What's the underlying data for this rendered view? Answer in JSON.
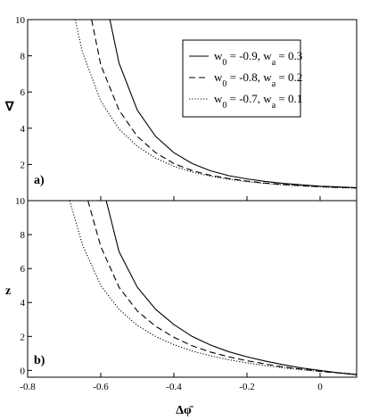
{
  "chart_data": [
    {
      "panel": "a)",
      "type": "line",
      "ylabel": "∇",
      "xlim": [
        -0.8,
        0.1
      ],
      "ylim": [
        0,
        10
      ],
      "yticks": [
        2,
        4,
        6,
        8,
        10
      ],
      "series": [
        {
          "style": "solid",
          "x": [
            -0.575,
            -0.55,
            -0.5,
            -0.45,
            -0.4,
            -0.35,
            -0.3,
            -0.25,
            -0.2,
            -0.15,
            -0.1,
            -0.05,
            0.0,
            0.05,
            0.1
          ],
          "y": [
            10.0,
            7.6,
            5.0,
            3.55,
            2.65,
            2.05,
            1.65,
            1.38,
            1.2,
            1.06,
            0.95,
            0.87,
            0.8,
            0.76,
            0.72
          ]
        },
        {
          "style": "dashed",
          "x": [
            -0.625,
            -0.6,
            -0.55,
            -0.5,
            -0.45,
            -0.4,
            -0.35,
            -0.3,
            -0.25,
            -0.2,
            -0.15,
            -0.1,
            -0.05,
            0.0,
            0.05,
            0.1
          ],
          "y": [
            10.0,
            7.5,
            5.0,
            3.55,
            2.65,
            2.05,
            1.66,
            1.4,
            1.22,
            1.08,
            0.97,
            0.89,
            0.82,
            0.77,
            0.73,
            0.7
          ]
        },
        {
          "style": "dotted",
          "x": [
            -0.67,
            -0.65,
            -0.6,
            -0.55,
            -0.5,
            -0.45,
            -0.4,
            -0.35,
            -0.3,
            -0.25,
            -0.2,
            -0.15,
            -0.1,
            -0.05,
            0.0,
            0.05,
            0.1
          ],
          "y": [
            10.0,
            8.2,
            5.5,
            3.95,
            3.0,
            2.35,
            1.9,
            1.58,
            1.35,
            1.18,
            1.05,
            0.95,
            0.87,
            0.81,
            0.76,
            0.72,
            0.69
          ]
        }
      ]
    },
    {
      "panel": "b)",
      "type": "line",
      "ylabel": "z",
      "xlabel": "Δφ̄",
      "xlim": [
        -0.8,
        0.1
      ],
      "ylim": [
        -0.4,
        10
      ],
      "xticks": [
        -0.8,
        -0.6,
        -0.4,
        -0.2,
        0
      ],
      "yticks": [
        0,
        2,
        4,
        6,
        8,
        10
      ],
      "series": [
        {
          "style": "solid",
          "x": [
            -0.585,
            -0.55,
            -0.5,
            -0.45,
            -0.4,
            -0.35,
            -0.3,
            -0.25,
            -0.2,
            -0.15,
            -0.1,
            -0.05,
            0.0,
            0.05,
            0.1
          ],
          "y": [
            10.0,
            7.0,
            4.9,
            3.6,
            2.7,
            2.0,
            1.5,
            1.1,
            0.8,
            0.55,
            0.33,
            0.14,
            0.0,
            -0.14,
            -0.26
          ]
        },
        {
          "style": "dashed",
          "x": [
            -0.635,
            -0.6,
            -0.55,
            -0.5,
            -0.45,
            -0.4,
            -0.35,
            -0.3,
            -0.25,
            -0.2,
            -0.15,
            -0.1,
            -0.05,
            0.0,
            0.05,
            0.1
          ],
          "y": [
            10.0,
            7.3,
            4.9,
            3.5,
            2.6,
            1.95,
            1.45,
            1.08,
            0.8,
            0.57,
            0.38,
            0.2,
            0.07,
            -0.05,
            -0.15,
            -0.24
          ]
        },
        {
          "style": "dotted",
          "x": [
            -0.685,
            -0.65,
            -0.6,
            -0.55,
            -0.5,
            -0.45,
            -0.4,
            -0.35,
            -0.3,
            -0.25,
            -0.2,
            -0.15,
            -0.1,
            -0.05,
            0.0,
            0.05,
            0.1
          ],
          "y": [
            10.0,
            7.4,
            5.0,
            3.6,
            2.65,
            2.0,
            1.52,
            1.14,
            0.86,
            0.63,
            0.44,
            0.28,
            0.15,
            0.04,
            -0.06,
            -0.14,
            -0.21
          ]
        }
      ]
    }
  ],
  "legend": [
    {
      "style": "solid",
      "w0": "-0.9",
      "wa": "0.3"
    },
    {
      "style": "dashed",
      "w0": "-0.8",
      "wa": "0.2"
    },
    {
      "style": "dotted",
      "w0": "-0.7",
      "wa": "0.1"
    }
  ]
}
